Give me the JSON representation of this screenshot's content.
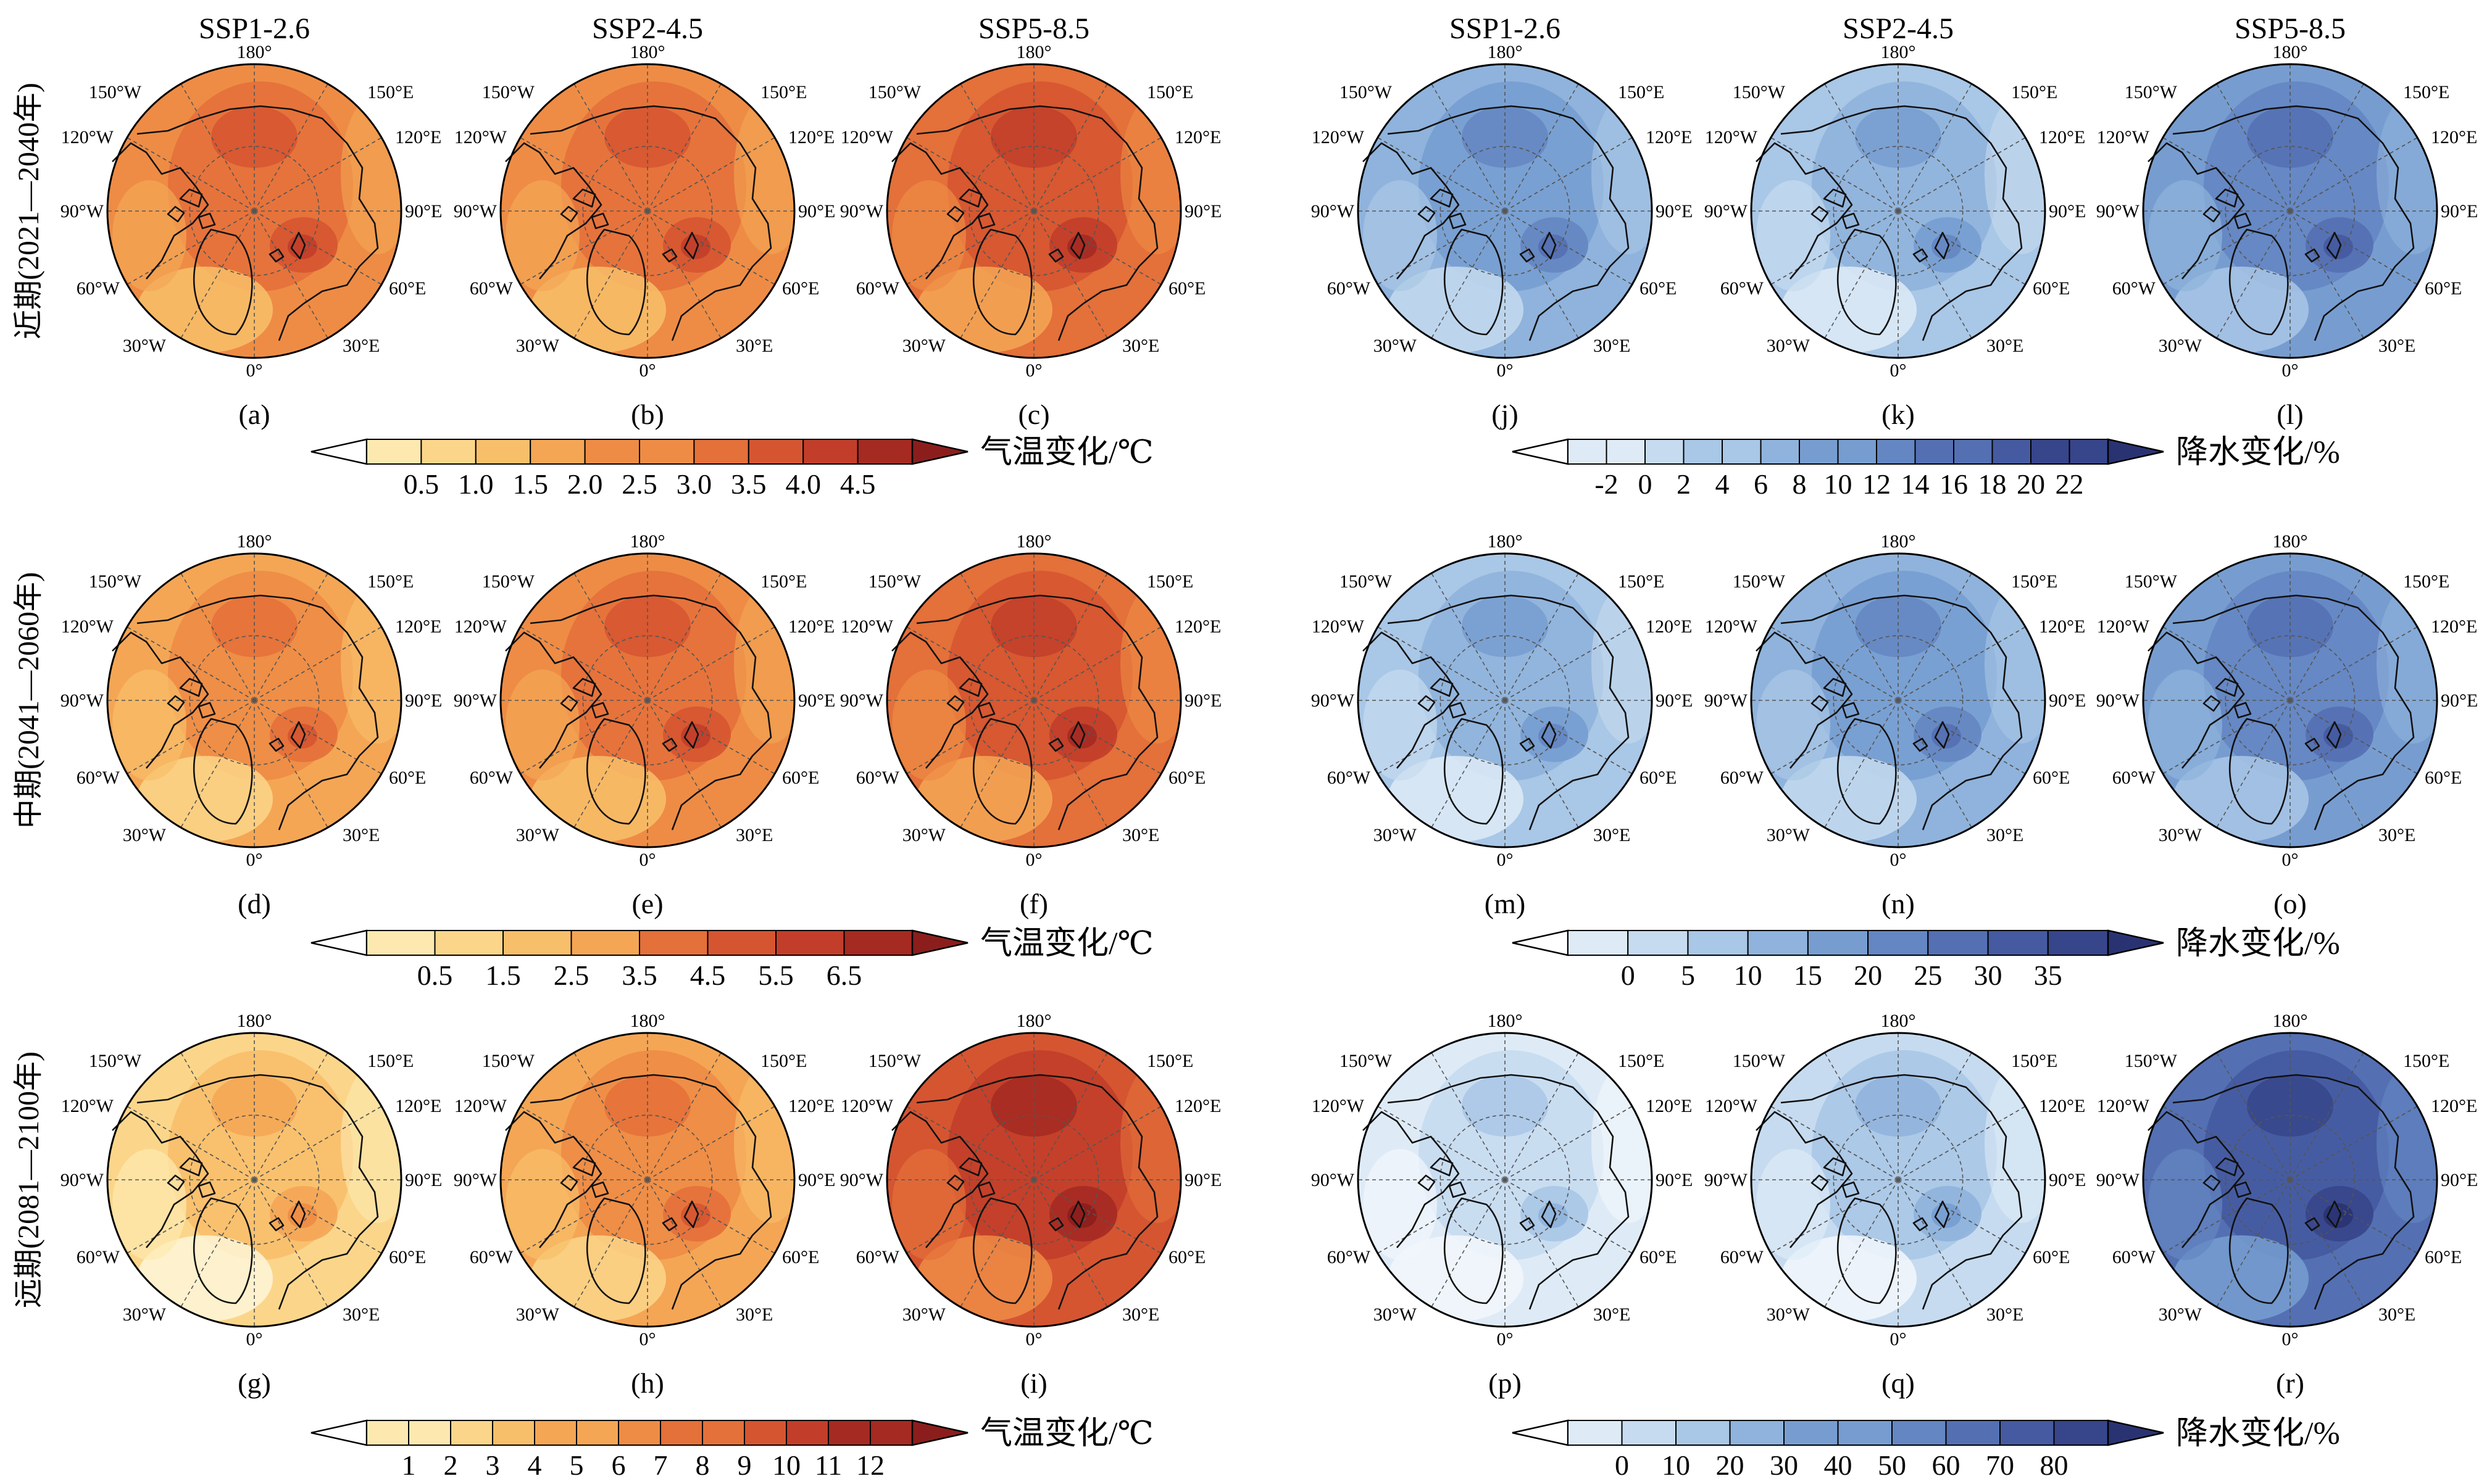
{
  "scenarios": [
    "SSP1-2.6",
    "SSP2-4.5",
    "SSP5-8.5"
  ],
  "row_labels": [
    "近期(2021—2040年)",
    "中期(2041—2060年)",
    "远期(2081—2100年)"
  ],
  "temperature": {
    "panel_labels": [
      [
        "(a)",
        "(b)",
        "(c)"
      ],
      [
        "(d)",
        "(e)",
        "(f)"
      ],
      [
        "(g)",
        "(h)",
        "(i)"
      ]
    ],
    "colorbar_title": "气温变化/℃",
    "colors": [
      "#fef6d8",
      "#fde9b0",
      "#fbd68a",
      "#f8bf6a",
      "#f4a655",
      "#ee8c45",
      "#e4703a",
      "#d55531",
      "#c23e2a",
      "#a52a22",
      "#8b1e1c"
    ],
    "colorbars": [
      {
        "ticks": [
          "0.5",
          "1.0",
          "1.5",
          "2.0",
          "2.5",
          "3.0",
          "3.5",
          "4.0",
          "4.5"
        ]
      },
      {
        "ticks": [
          "0.5",
          "1.5",
          "2.5",
          "3.5",
          "4.5",
          "5.5",
          "6.5"
        ]
      },
      {
        "ticks": [
          "1",
          "2",
          "3",
          "4",
          "5",
          "6",
          "7",
          "8",
          "9",
          "10",
          "11",
          "12"
        ]
      }
    ],
    "panel_levels": [
      [
        5,
        5,
        6
      ],
      [
        4,
        5,
        6
      ],
      [
        2,
        4,
        7
      ]
    ]
  },
  "precipitation": {
    "panel_labels": [
      [
        "(j)",
        "(k)",
        "(l)"
      ],
      [
        "(m)",
        "(n)",
        "(o)"
      ],
      [
        "(p)",
        "(q)",
        "(r)"
      ]
    ],
    "colorbar_title": "降水变化/%",
    "colors": [
      "#f2f7fc",
      "#deebf7",
      "#c6dbef",
      "#a9c7e6",
      "#8fb3dc",
      "#779dd0",
      "#6486c2",
      "#5470b3",
      "#455aa0",
      "#37458a",
      "#2a3372"
    ],
    "colorbars": [
      {
        "ticks": [
          "-2",
          "0",
          "2",
          "4",
          "6",
          "8",
          "10",
          "12",
          "14",
          "16",
          "18",
          "20",
          "22"
        ]
      },
      {
        "ticks": [
          "0",
          "5",
          "10",
          "15",
          "20",
          "25",
          "30",
          "35"
        ]
      },
      {
        "ticks": [
          "0",
          "10",
          "20",
          "30",
          "40",
          "50",
          "60",
          "70",
          "80"
        ]
      }
    ],
    "panel_levels": [
      [
        4,
        3,
        5
      ],
      [
        3,
        4,
        5
      ],
      [
        1,
        2,
        7
      ]
    ]
  },
  "map_labels": {
    "top": "180°",
    "bottom": "0°",
    "left": "90°W",
    "right": "90°E",
    "upper_left_outer": "150°W",
    "upper_right_outer": "150°E",
    "upper_left": "120°W",
    "upper_right": "120°E",
    "lower_left": "60°W",
    "lower_right": "60°E",
    "lower_left_outer": "30°W",
    "lower_right_outer": "30°E"
  }
}
